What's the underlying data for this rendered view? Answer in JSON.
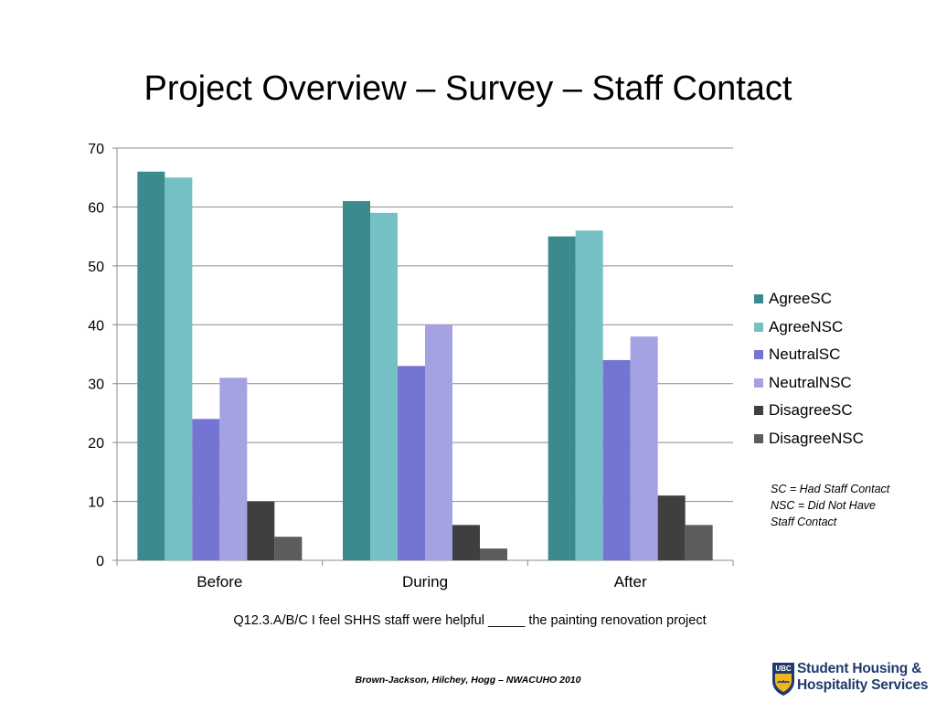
{
  "slide": {
    "title": "Project Overview – Survey – Staff Contact",
    "footnote_lines": [
      "SC = Had Staff Contact",
      "NSC = Did Not Have",
      "Staff Contact"
    ],
    "question": "Q12.3.A/B/C I feel SHHS staff were helpful _____ the painting renovation project",
    "citation": "Brown-Jackson, Hilchey, Hogg – NWACUHO 2010",
    "logo": {
      "mark_text": "UBC",
      "line1": "Student Housing &",
      "line2": "Hospitality Services"
    }
  },
  "chart_data": {
    "type": "bar",
    "categories": [
      "Before",
      "During",
      "After"
    ],
    "series": [
      {
        "name": "AgreeSC",
        "color": "#3a8a8e",
        "values": [
          66,
          61,
          55
        ]
      },
      {
        "name": "AgreeNSC",
        "color": "#74c0c4",
        "values": [
          65,
          59,
          56
        ]
      },
      {
        "name": "NeutralSC",
        "color": "#7474d2",
        "values": [
          24,
          33,
          34
        ]
      },
      {
        "name": "NeutralNSC",
        "color": "#a4a2e2",
        "values": [
          31,
          40,
          38
        ]
      },
      {
        "name": "DisagreeSC",
        "color": "#3f3f3f",
        "values": [
          10,
          6,
          11
        ]
      },
      {
        "name": "DisagreeNSC",
        "color": "#5c5c5c",
        "values": [
          4,
          2,
          6
        ]
      }
    ],
    "title": "",
    "xlabel": "",
    "ylabel": "",
    "ylim": [
      0,
      70
    ],
    "yticks": [
      0,
      10,
      20,
      30,
      40,
      50,
      60,
      70
    ],
    "grid": true,
    "legend_position": "right"
  }
}
